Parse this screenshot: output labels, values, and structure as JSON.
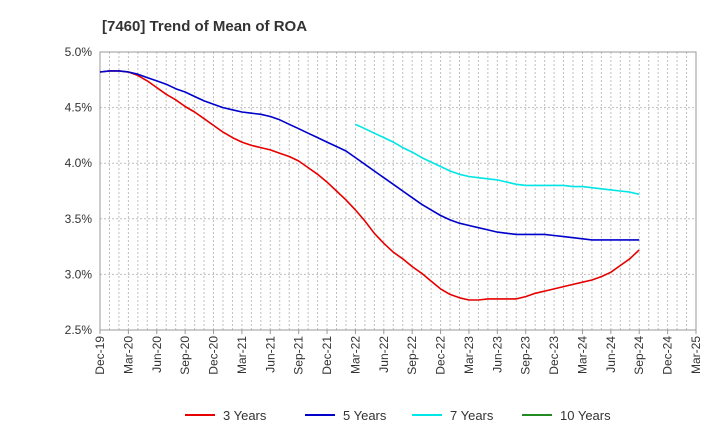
{
  "chart_data": {
    "type": "line",
    "title": "[7460]  Trend of Mean of ROA",
    "xlabel": "",
    "ylabel": "",
    "ylim": [
      2.5,
      5.0
    ],
    "y_ticks": [
      "2.5%",
      "3.0%",
      "3.5%",
      "4.0%",
      "4.5%",
      "5.0%"
    ],
    "y_tick_values": [
      2.5,
      3.0,
      3.5,
      4.0,
      4.5,
      5.0
    ],
    "x_ticks": [
      "Dec-19",
      "Mar-20",
      "Jun-20",
      "Sep-20",
      "Dec-20",
      "Mar-21",
      "Jun-21",
      "Sep-21",
      "Dec-21",
      "Mar-22",
      "Jun-22",
      "Sep-22",
      "Dec-22",
      "Mar-23",
      "Jun-23",
      "Sep-23",
      "Dec-23",
      "Mar-24",
      "Jun-24",
      "Sep-24",
      "Dec-24",
      "Mar-25"
    ],
    "grid": true,
    "legend_position": "bottom",
    "series": [
      {
        "name": "3 Years",
        "color": "#e60000",
        "start_index": 0,
        "values": [
          4.82,
          4.83,
          4.83,
          4.82,
          4.79,
          4.74,
          4.68,
          4.62,
          4.57,
          4.51,
          4.46,
          4.4,
          4.34,
          4.28,
          4.23,
          4.19,
          4.16,
          4.14,
          4.12,
          4.09,
          4.06,
          4.02,
          3.96,
          3.9,
          3.83,
          3.75,
          3.67,
          3.58,
          3.48,
          3.37,
          3.28,
          3.2,
          3.14,
          3.07,
          3.01,
          2.94,
          2.87,
          2.82,
          2.79,
          2.77,
          2.77,
          2.78,
          2.78,
          2.78,
          2.78,
          2.8,
          2.83,
          2.85,
          2.87,
          2.89,
          2.91,
          2.93,
          2.95,
          2.98,
          3.02,
          3.08,
          3.14,
          3.22
        ]
      },
      {
        "name": "5 Years",
        "color": "#0000cc",
        "start_index": 0,
        "values": [
          4.82,
          4.83,
          4.83,
          4.82,
          4.8,
          4.77,
          4.74,
          4.71,
          4.67,
          4.64,
          4.6,
          4.56,
          4.53,
          4.5,
          4.48,
          4.46,
          4.45,
          4.44,
          4.42,
          4.39,
          4.35,
          4.31,
          4.27,
          4.23,
          4.19,
          4.15,
          4.11,
          4.05,
          3.99,
          3.93,
          3.87,
          3.81,
          3.75,
          3.69,
          3.63,
          3.58,
          3.53,
          3.49,
          3.46,
          3.44,
          3.42,
          3.4,
          3.38,
          3.37,
          3.36,
          3.36,
          3.36,
          3.36,
          3.35,
          3.34,
          3.33,
          3.32,
          3.31,
          3.31,
          3.31,
          3.31,
          3.31,
          3.31
        ]
      },
      {
        "name": "7 Years",
        "color": "#00e5e5",
        "start_index": 27,
        "values": [
          4.35,
          4.31,
          4.27,
          4.23,
          4.19,
          4.14,
          4.1,
          4.05,
          4.01,
          3.97,
          3.93,
          3.9,
          3.88,
          3.87,
          3.86,
          3.85,
          3.83,
          3.81,
          3.8,
          3.8,
          3.8,
          3.8,
          3.8,
          3.79,
          3.79,
          3.78,
          3.77,
          3.76,
          3.75,
          3.74,
          3.72
        ]
      },
      {
        "name": "10 Years",
        "color": "#228b22",
        "start_index": 0,
        "values": []
      }
    ]
  }
}
